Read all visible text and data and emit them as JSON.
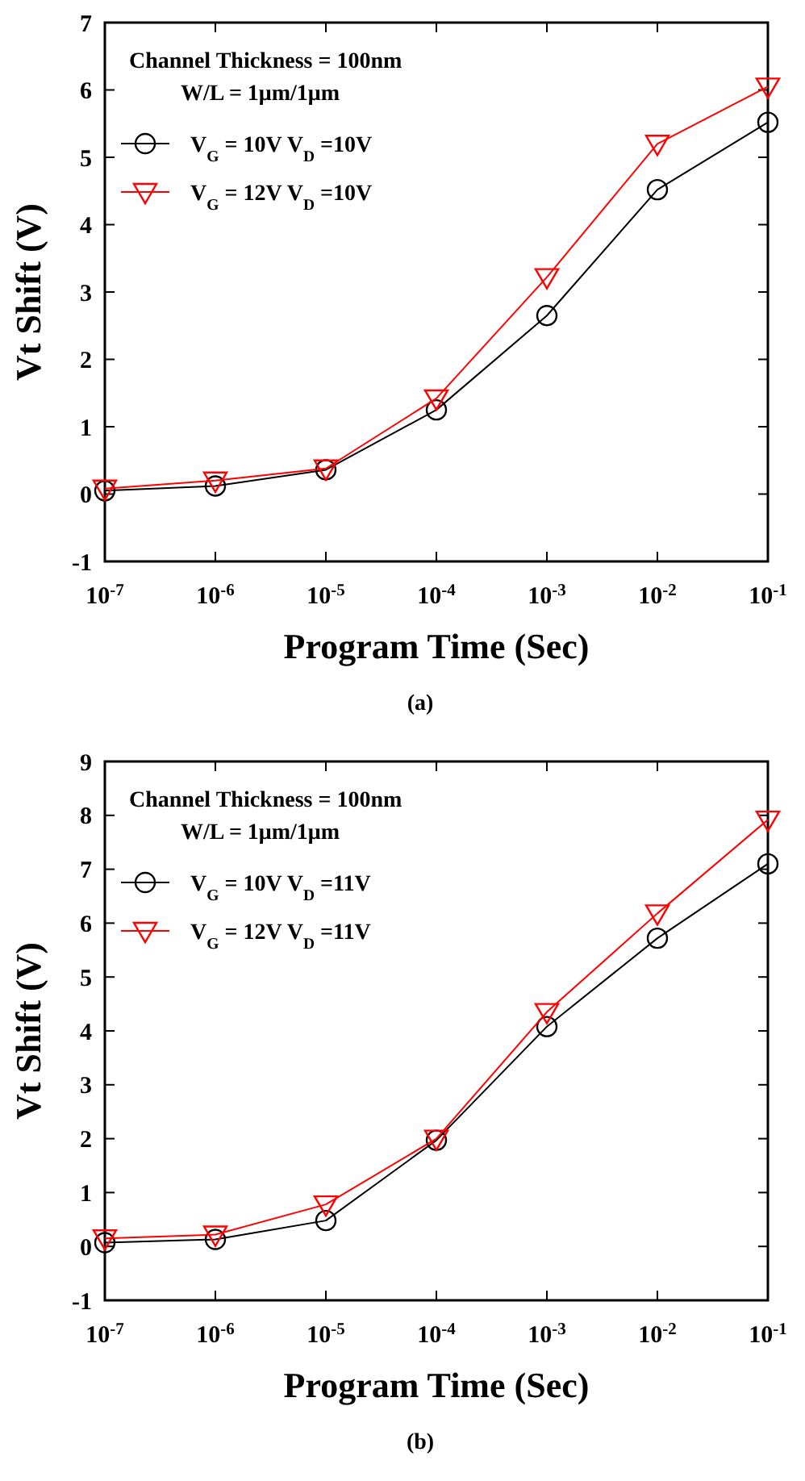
{
  "chart_data": [
    {
      "type": "line",
      "xlabel": "Program Time (Sec)",
      "ylabel": "Vt Shift (V)",
      "log": "x",
      "x": [
        1e-07,
        1e-06,
        1e-05,
        0.0001,
        0.001,
        0.01,
        0.1
      ],
      "xlim": [
        1e-07,
        0.1
      ],
      "xticks": [
        {
          "value": 1e-07,
          "label": "10$^{-7}$"
        },
        {
          "value": 1e-06,
          "label": "10$^{-6}$"
        },
        {
          "value": 1e-05,
          "label": "10$^{-5}$"
        },
        {
          "value": 0.0001,
          "label": "10$^{-4}$"
        },
        {
          "value": 0.001,
          "label": "10$^{-3}$"
        },
        {
          "value": 0.01,
          "label": "10$^{-2}$"
        },
        {
          "value": 0.1,
          "label": "10$^{-1}$"
        }
      ],
      "ylim": [
        -1,
        7
      ],
      "yticks": [
        -1,
        0,
        1,
        2,
        3,
        4,
        5,
        6,
        7
      ],
      "legend": "top left",
      "series": [
        {
          "name": "V$_{G}$ = 10V V$_{D}$ =10V",
          "color": "#000000",
          "marker": "circle",
          "values": [
            0.05,
            0.12,
            0.36,
            1.25,
            2.65,
            4.52,
            5.52
          ]
        },
        {
          "name": "V$_{G}$ = 12V V$_{D}$ =10V",
          "color": "#ff0000",
          "marker": "triangle",
          "values": [
            0.08,
            0.2,
            0.38,
            1.42,
            3.22,
            5.2,
            6.05
          ]
        }
      ],
      "annotations": [
        "Channel Thickness = 100nm",
        "W/L = 1μm/1μm",
        "(a)"
      ]
    },
    {
      "type": "line",
      "xlabel": "Program Time (Sec)",
      "ylabel": "Vt Shift (V)",
      "log": "x",
      "x": [
        1e-07,
        1e-06,
        1e-05,
        0.0001,
        0.001,
        0.01,
        0.1
      ],
      "xlim": [
        1e-07,
        0.1
      ],
      "xticks": [
        {
          "value": 1e-07,
          "label": "10$^{-7}$"
        },
        {
          "value": 1e-06,
          "label": "10$^{-6}$"
        },
        {
          "value": 1e-05,
          "label": "10$^{-5}$"
        },
        {
          "value": 0.0001,
          "label": "10$^{-4}$"
        },
        {
          "value": 0.001,
          "label": "10$^{-3}$"
        },
        {
          "value": 0.01,
          "label": "10$^{-2}$"
        },
        {
          "value": 0.1,
          "label": "10$^{-1}$"
        }
      ],
      "ylim": [
        -1,
        9
      ],
      "yticks": [
        -1,
        0,
        1,
        2,
        3,
        4,
        5,
        6,
        7,
        8,
        9
      ],
      "legend": "top left",
      "series": [
        {
          "name": "V$_{G}$ = 10V V$_{D}$ =11V",
          "color": "#000000",
          "marker": "circle",
          "values": [
            0.07,
            0.13,
            0.48,
            1.97,
            4.08,
            5.72,
            7.1
          ]
        },
        {
          "name": "V$_{G}$ = 12V V$_{D}$ =11V",
          "color": "#ff0000",
          "marker": "triangle",
          "values": [
            0.15,
            0.22,
            0.78,
            2.0,
            4.35,
            6.18,
            7.92
          ]
        }
      ],
      "annotations": [
        "Channel Thickness = 100nm",
        "W/L = 1μm/1μm",
        "(b)"
      ]
    }
  ]
}
